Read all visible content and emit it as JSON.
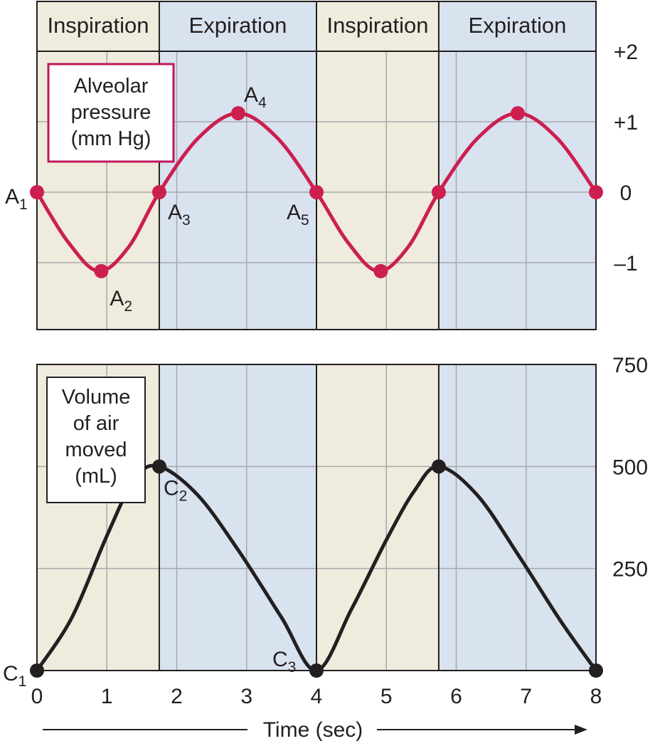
{
  "chart_data": [
    {
      "type": "line",
      "title": "Alveolar pressure (mm Hg)",
      "title_lines": [
        "Alveolar",
        "pressure",
        "(mm Hg)"
      ],
      "xlim": [
        0,
        8
      ],
      "ylim": [
        -2,
        2
      ],
      "y_ticks": [
        {
          "value": 2,
          "label": "+2"
        },
        {
          "value": 1,
          "label": "+1"
        },
        {
          "value": 0,
          "label": "0"
        },
        {
          "value": -1,
          "label": "–1"
        }
      ],
      "grid": true,
      "phases": [
        {
          "label": "Inspiration",
          "start": 0,
          "end": 1.75,
          "color": "#efebdd"
        },
        {
          "label": "Expiration",
          "start": 1.75,
          "end": 4,
          "color": "#d9e2ef"
        },
        {
          "label": "Inspiration",
          "start": 4,
          "end": 5.75,
          "color": "#efebdd"
        },
        {
          "label": "Expiration",
          "start": 5.75,
          "end": 8,
          "color": "#d9e2ef"
        }
      ],
      "series": [
        {
          "name": "Alveolar pressure",
          "color": "#cc1f4f",
          "x": [
            0,
            0.44,
            0.88,
            1.31,
            1.75,
            2.31,
            2.88,
            3.44,
            4,
            4.44,
            4.88,
            5.31,
            5.75,
            6.31,
            6.88,
            7.44,
            8
          ],
          "y": [
            0,
            -0.7,
            -1.12,
            -0.78,
            0,
            0.77,
            1.12,
            0.77,
            0,
            -0.7,
            -1.12,
            -0.78,
            0,
            0.77,
            1.12,
            0.77,
            0
          ]
        }
      ],
      "markers": [
        {
          "x": 0,
          "y": 0,
          "label": "A",
          "sub": "1"
        },
        {
          "x": 0.92,
          "y": -1.12,
          "label": "A",
          "sub": "2"
        },
        {
          "x": 1.75,
          "y": 0,
          "label": "A",
          "sub": "3"
        },
        {
          "x": 2.88,
          "y": 1.12,
          "label": "A",
          "sub": "4"
        },
        {
          "x": 4,
          "y": 0,
          "label": "A",
          "sub": "5"
        },
        {
          "x": 4.92,
          "y": -1.12,
          "label": "",
          "sub": ""
        },
        {
          "x": 5.75,
          "y": 0,
          "label": "",
          "sub": ""
        },
        {
          "x": 6.88,
          "y": 1.12,
          "label": "",
          "sub": ""
        },
        {
          "x": 8,
          "y": 0,
          "label": "",
          "sub": ""
        }
      ]
    },
    {
      "type": "line",
      "title": "Volume of air moved (mL)",
      "title_lines": [
        "Volume",
        "of air",
        "moved",
        "(mL)"
      ],
      "xlabel": "Time (sec)",
      "xlim": [
        0,
        8
      ],
      "ylim": [
        0,
        750
      ],
      "x_ticks": [
        "0",
        "1",
        "2",
        "3",
        "4",
        "5",
        "6",
        "7",
        "8"
      ],
      "y_ticks": [
        {
          "value": 750,
          "label": "750"
        },
        {
          "value": 500,
          "label": "500"
        },
        {
          "value": 250,
          "label": "250"
        }
      ],
      "grid": true,
      "series": [
        {
          "name": "Volume of air moved",
          "color": "#231f20",
          "x": [
            0,
            0.5,
            1.0,
            1.4,
            1.75,
            2.3,
            2.9,
            3.5,
            4,
            4.5,
            5.0,
            5.4,
            5.75,
            6.3,
            6.9,
            7.5,
            8
          ],
          "y": [
            0,
            130,
            330,
            470,
            500,
            430,
            290,
            130,
            0,
            150,
            320,
            440,
            500,
            430,
            280,
            120,
            0
          ]
        }
      ],
      "markers": [
        {
          "x": 0,
          "y": 0,
          "label": "C",
          "sub": "1"
        },
        {
          "x": 1.75,
          "y": 500,
          "label": "C",
          "sub": "2"
        },
        {
          "x": 4,
          "y": 0,
          "label": "C",
          "sub": "3"
        },
        {
          "x": 5.75,
          "y": 500,
          "label": "",
          "sub": ""
        },
        {
          "x": 8,
          "y": 0,
          "label": "",
          "sub": ""
        }
      ]
    }
  ]
}
